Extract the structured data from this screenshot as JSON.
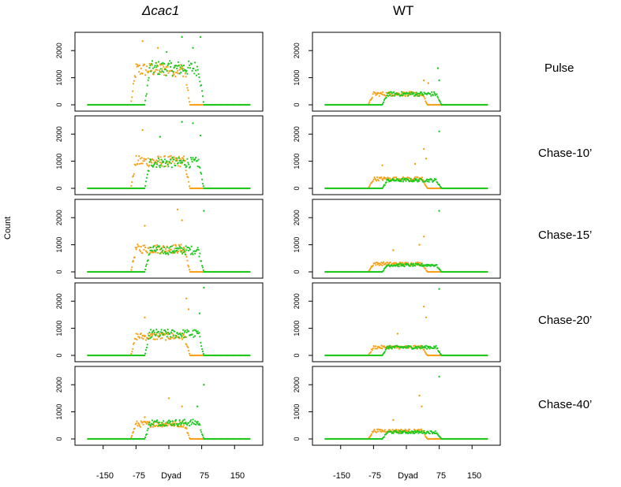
{
  "chart_data": {
    "type": "scatter",
    "title": "",
    "ylabel": "Count",
    "xlabel": "",
    "xlim": [
      -200,
      200
    ],
    "ylim": [
      0,
      2500
    ],
    "yticks": [
      0,
      1000,
      2000
    ],
    "xticks": [
      {
        "value": -150,
        "label": "-150"
      },
      {
        "value": -75,
        "label": "-75"
      },
      {
        "value": 0,
        "label": "Dyad"
      },
      {
        "value": 75,
        "label": "75"
      },
      {
        "value": 150,
        "label": "150"
      }
    ],
    "columns": [
      "Δcac1",
      "WT"
    ],
    "rows": [
      "Pulse",
      "Chase-10’",
      "Chase-15’",
      "Chase-20’",
      "Chase-40’"
    ],
    "series_colors": {
      "orange": "#f7a11a",
      "green": "#1fc81f"
    },
    "panels": [
      {
        "column": "Δcac1",
        "row": "Pulse",
        "orange": {
          "start": -87,
          "end": 48,
          "peak": 1300
        },
        "green": {
          "start": -55,
          "end": 80,
          "peak": 1350
        },
        "outliers": [
          [
            -60,
            2350,
            "orange"
          ],
          [
            -25,
            2100,
            "orange"
          ],
          [
            -5,
            1950,
            "green"
          ],
          [
            30,
            2500,
            "green"
          ],
          [
            55,
            2100,
            "green"
          ],
          [
            72,
            2500,
            "green"
          ]
        ]
      },
      {
        "column": "Δcac1",
        "row": "Chase-10’",
        "orange": {
          "start": -87,
          "end": 48,
          "peak": 1000
        },
        "green": {
          "start": -55,
          "end": 80,
          "peak": 950
        },
        "outliers": [
          [
            -60,
            2150,
            "orange"
          ],
          [
            -20,
            1900,
            "green"
          ],
          [
            30,
            2450,
            "green"
          ],
          [
            55,
            2400,
            "green"
          ],
          [
            72,
            1950,
            "green"
          ]
        ]
      },
      {
        "column": "Δcac1",
        "row": "Chase-15’",
        "orange": {
          "start": -87,
          "end": 48,
          "peak": 850
        },
        "green": {
          "start": -55,
          "end": 80,
          "peak": 800
        },
        "outliers": [
          [
            -55,
            1700,
            "orange"
          ],
          [
            20,
            2300,
            "orange"
          ],
          [
            30,
            1900,
            "orange"
          ],
          [
            80,
            2250,
            "green"
          ]
        ]
      },
      {
        "column": "Δcac1",
        "row": "Chase-20’",
        "orange": {
          "start": -87,
          "end": 48,
          "peak": 700
        },
        "green": {
          "start": -55,
          "end": 80,
          "peak": 800
        },
        "outliers": [
          [
            -55,
            1400,
            "orange"
          ],
          [
            40,
            2100,
            "orange"
          ],
          [
            45,
            1700,
            "orange"
          ],
          [
            70,
            1550,
            "green"
          ],
          [
            80,
            2500,
            "green"
          ]
        ]
      },
      {
        "column": "Δcac1",
        "row": "Chase-40’",
        "orange": {
          "start": -87,
          "end": 48,
          "peak": 550
        },
        "green": {
          "start": -55,
          "end": 80,
          "peak": 600
        },
        "outliers": [
          [
            -55,
            800,
            "orange"
          ],
          [
            0,
            1500,
            "orange"
          ],
          [
            30,
            1200,
            "orange"
          ],
          [
            80,
            2000,
            "green"
          ],
          [
            65,
            1200,
            "green"
          ]
        ]
      },
      {
        "column": "WT",
        "row": "Pulse",
        "orange": {
          "start": -87,
          "end": 48,
          "peak": 400
        },
        "green": {
          "start": -55,
          "end": 80,
          "peak": 400
        },
        "outliers": [
          [
            40,
            900,
            "orange"
          ],
          [
            50,
            800,
            "orange"
          ],
          [
            72,
            1350,
            "green"
          ],
          [
            75,
            900,
            "green"
          ]
        ]
      },
      {
        "column": "WT",
        "row": "Chase-10’",
        "orange": {
          "start": -87,
          "end": 48,
          "peak": 350
        },
        "green": {
          "start": -55,
          "end": 80,
          "peak": 300
        },
        "outliers": [
          [
            -55,
            850,
            "orange"
          ],
          [
            20,
            900,
            "orange"
          ],
          [
            40,
            1450,
            "orange"
          ],
          [
            45,
            1100,
            "orange"
          ],
          [
            75,
            2100,
            "green"
          ]
        ]
      },
      {
        "column": "WT",
        "row": "Chase-15’",
        "orange": {
          "start": -87,
          "end": 48,
          "peak": 300
        },
        "green": {
          "start": -55,
          "end": 80,
          "peak": 250
        },
        "outliers": [
          [
            -30,
            800,
            "orange"
          ],
          [
            40,
            1300,
            "orange"
          ],
          [
            30,
            1000,
            "orange"
          ],
          [
            75,
            2250,
            "green"
          ]
        ]
      },
      {
        "column": "WT",
        "row": "Chase-20’",
        "orange": {
          "start": -87,
          "end": 48,
          "peak": 300
        },
        "green": {
          "start": -55,
          "end": 80,
          "peak": 300
        },
        "outliers": [
          [
            -20,
            800,
            "orange"
          ],
          [
            40,
            1800,
            "orange"
          ],
          [
            45,
            1400,
            "orange"
          ],
          [
            75,
            2450,
            "green"
          ]
        ]
      },
      {
        "column": "WT",
        "row": "Chase-40’",
        "orange": {
          "start": -87,
          "end": 48,
          "peak": 300
        },
        "green": {
          "start": -55,
          "end": 80,
          "peak": 250
        },
        "outliers": [
          [
            -30,
            700,
            "orange"
          ],
          [
            30,
            1600,
            "orange"
          ],
          [
            35,
            1200,
            "orange"
          ],
          [
            75,
            2300,
            "green"
          ]
        ]
      }
    ]
  }
}
